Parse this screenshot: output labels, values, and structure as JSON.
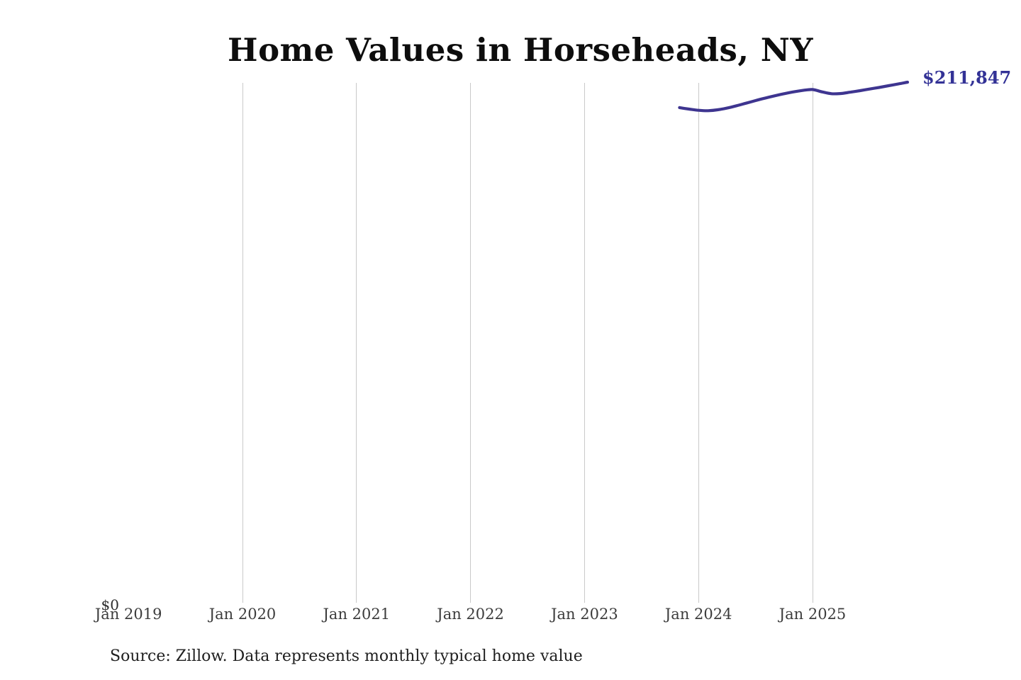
{
  "page": {
    "background": "#ffffff"
  },
  "header": {
    "title": "Home Values in Horseheads, NY"
  },
  "annotations": {
    "end_value_label": "$211,847",
    "y_zero_label": "$0"
  },
  "footer": {
    "source_note": "Source: Zillow. Data represents monthly typical home value"
  },
  "colors": {
    "line": "#3e3590",
    "end_label": "#333296",
    "gridline": "#c9c9c9",
    "title_text": "#0d0d0d",
    "axis_text": "#3c3c3c",
    "source_text": "#1f1f1f",
    "background": "#ffffff"
  },
  "chart_data": {
    "type": "line",
    "title": "Home Values in Horseheads, NY",
    "xlabel": "",
    "ylabel": "",
    "ylim": [
      0,
      211847
    ],
    "grid": "vertical-only",
    "legend": "none",
    "x_ticks": [
      {
        "label": "Jan 2019",
        "year": 2019,
        "gridline": false
      },
      {
        "label": "Jan 2020",
        "year": 2020,
        "gridline": true
      },
      {
        "label": "Jan 2021",
        "year": 2021,
        "gridline": true
      },
      {
        "label": "Jan 2022",
        "year": 2022,
        "gridline": true
      },
      {
        "label": "Jan 2023",
        "year": 2023,
        "gridline": true
      },
      {
        "label": "Jan 2024",
        "year": 2024,
        "gridline": true
      },
      {
        "label": "Jan 2025",
        "year": 2025,
        "gridline": true
      }
    ],
    "series": [
      {
        "name": "Monthly typical home value",
        "color": "#3e3590",
        "months": [
          "2023-11",
          "2023-12",
          "2024-01",
          "2024-02",
          "2024-03",
          "2024-04",
          "2024-05",
          "2024-06",
          "2024-07",
          "2024-08",
          "2024-09",
          "2024-10",
          "2024-11",
          "2024-12",
          "2025-01",
          "2025-02",
          "2025-03",
          "2025-04",
          "2025-05",
          "2025-06",
          "2025-07",
          "2025-08",
          "2025-09",
          "2025-10",
          "2025-11"
        ],
        "values": [
          201500,
          200900,
          200400,
          200250,
          200600,
          201300,
          202250,
          203300,
          204350,
          205350,
          206300,
          207150,
          207900,
          208500,
          208850,
          207900,
          207150,
          207250,
          207800,
          208400,
          209050,
          209700,
          210400,
          211100,
          211847
        ]
      }
    ],
    "end_label": "$211,847",
    "source": "Zillow"
  }
}
